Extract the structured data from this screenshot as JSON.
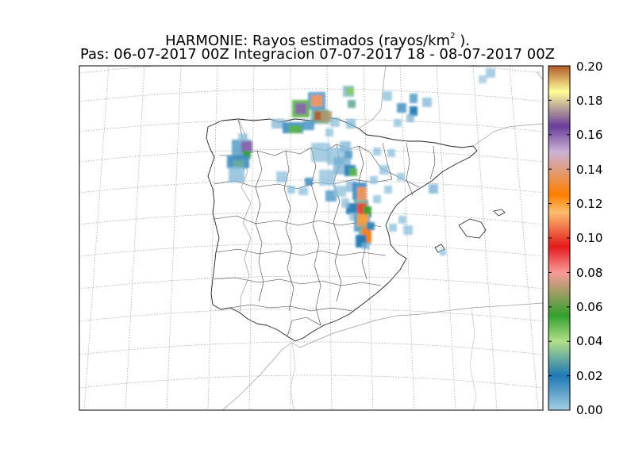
{
  "title": {
    "line1_prefix": "HARMONIE: Rayos estimados  (rayos/km",
    "line1_sup": "2",
    "line1_suffix": " ).",
    "line2": "Pas: 06-07-2017 00Z Integracion 07-07-2017 18 - 08-07-2017 00Z"
  },
  "colorbar": {
    "ticks": [
      "0.20",
      "0.18",
      "0.16",
      "0.14",
      "0.12",
      "0.10",
      "0.08",
      "0.06",
      "0.04",
      "0.02",
      "0.00"
    ],
    "min": 0.0,
    "max": 0.2,
    "stops": [
      {
        "v": 0.0,
        "c": "#a6cee3"
      },
      {
        "v": 0.02,
        "c": "#1f78b4"
      },
      {
        "v": 0.04,
        "c": "#b2df8a"
      },
      {
        "v": 0.055,
        "c": "#33a02c"
      },
      {
        "v": 0.08,
        "c": "#fb9a99"
      },
      {
        "v": 0.095,
        "c": "#e31a1c"
      },
      {
        "v": 0.115,
        "c": "#fdbf6f"
      },
      {
        "v": 0.125,
        "c": "#ff7f00"
      },
      {
        "v": 0.15,
        "c": "#cab2d6"
      },
      {
        "v": 0.165,
        "c": "#6a3d9a"
      },
      {
        "v": 0.185,
        "c": "#ffff99"
      },
      {
        "v": 0.2,
        "c": "#b15928"
      }
    ]
  }
}
